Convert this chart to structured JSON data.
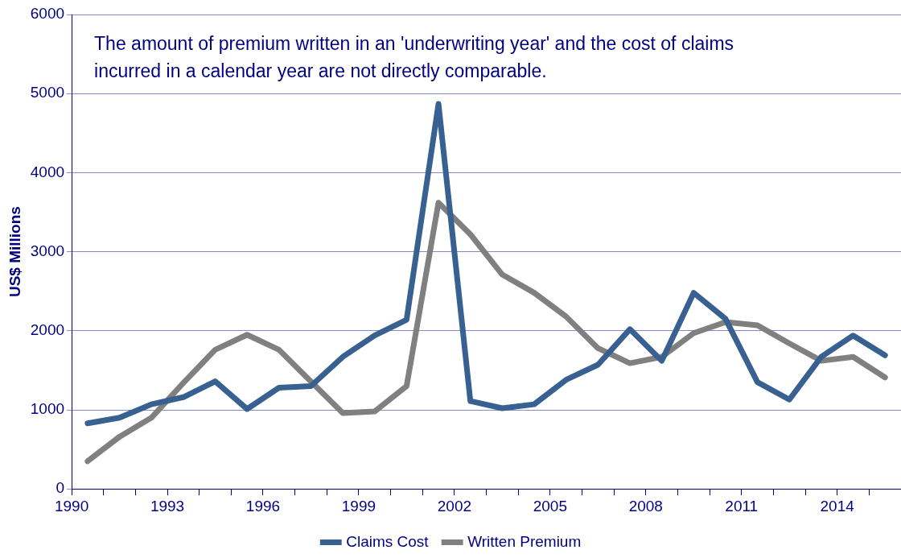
{
  "chart_data": {
    "type": "line",
    "ylabel": "US$ Millions",
    "annotations": [
      "The amount of premium written in an 'underwriting year' and the cost of claims incurred in a calendar year are not directly comparable."
    ],
    "x": [
      1990.5,
      1991.5,
      1992.5,
      1993.5,
      1994.5,
      1995.5,
      1996.5,
      1997.5,
      1998.5,
      1999.5,
      2000.5,
      2001.5,
      2002.5,
      2003.5,
      2004.5,
      2005.5,
      2006.5,
      2007.5,
      2008.5,
      2009.5,
      2010.5,
      2011.5,
      2012.5,
      2013.5,
      2014.5,
      2015.5
    ],
    "series": [
      {
        "name": "Claims Cost",
        "color": "#386090",
        "values": [
          830,
          900,
          1070,
          1160,
          1360,
          1010,
          1280,
          1300,
          1670,
          1940,
          2140,
          4870,
          1110,
          1020,
          1070,
          1380,
          1570,
          2020,
          1620,
          2480,
          2150,
          1350,
          1130,
          1670,
          1940,
          1690
        ]
      },
      {
        "name": "Written Premium",
        "color": "#808080",
        "values": [
          350,
          660,
          900,
          1340,
          1760,
          1950,
          1760,
          1360,
          960,
          980,
          1300,
          3620,
          3220,
          2710,
          2480,
          2180,
          1780,
          1590,
          1670,
          1970,
          2110,
          2070,
          1840,
          1620,
          1670,
          1410
        ]
      }
    ],
    "xlim": [
      1990,
      2016
    ],
    "xticks": [
      1990,
      {
        "value": 1991,
        "label": null
      },
      {
        "value": 1992,
        "label": null
      },
      1993,
      {
        "value": 1994,
        "label": null
      },
      {
        "value": 1995,
        "label": null
      },
      1996,
      {
        "value": 1997,
        "label": null
      },
      {
        "value": 1998,
        "label": null
      },
      1999,
      {
        "value": 2000,
        "label": null
      },
      {
        "value": 2001,
        "label": null
      },
      2002,
      {
        "value": 2003,
        "label": null
      },
      {
        "value": 2004,
        "label": null
      },
      2005,
      {
        "value": 2006,
        "label": null
      },
      {
        "value": 2007,
        "label": null
      },
      2008,
      {
        "value": 2009,
        "label": null
      },
      {
        "value": 2010,
        "label": null
      },
      2011,
      {
        "value": 2012,
        "label": null
      },
      {
        "value": 2013,
        "label": null
      },
      2014,
      {
        "value": 2015,
        "label": null
      }
    ],
    "ylim": [
      0,
      6000
    ],
    "yticks": [
      0,
      1000,
      2000,
      3000,
      4000,
      5000,
      6000
    ],
    "grid": "y",
    "legend": "bottom",
    "marker": "none",
    "line_style": "solid"
  }
}
